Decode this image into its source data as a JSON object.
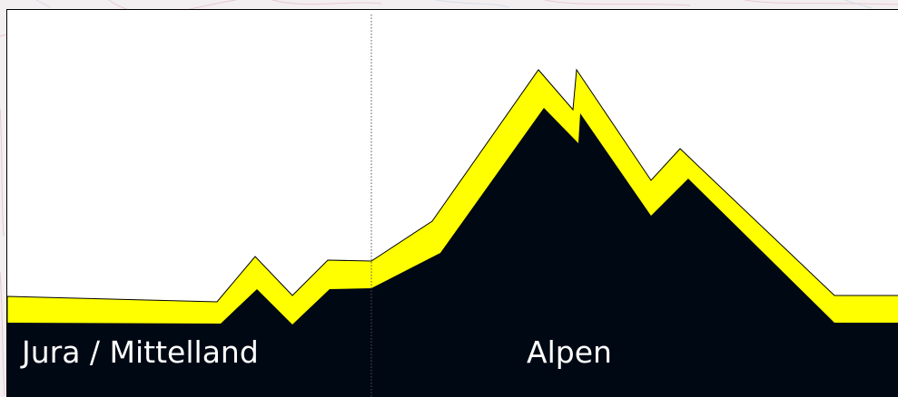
{
  "diagram": {
    "regions": [
      {
        "label": "Jura / Mittelland"
      },
      {
        "label": "Alpen"
      }
    ],
    "colors": {
      "terrain": "#000814",
      "band": "#ffff00",
      "divider": "#555555",
      "background": "#ffffff",
      "label_text": "#ffffff"
    }
  }
}
